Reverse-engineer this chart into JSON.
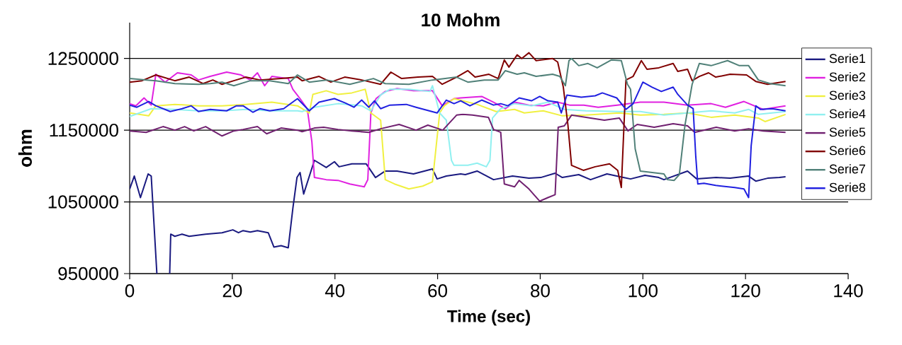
{
  "chart_data": {
    "type": "line",
    "title": "10 Mohm",
    "xlabel": "Time (sec)",
    "ylabel": "ohm",
    "xlim": [
      0,
      140
    ],
    "xticks": [
      0,
      20,
      40,
      60,
      80,
      100,
      120,
      140
    ],
    "ylim": [
      950000,
      1300000
    ],
    "yticks": [
      950000,
      1050000,
      1150000,
      1250000
    ],
    "grid": "y",
    "legend": "right",
    "series": [
      {
        "name": "Serie1",
        "color": "#1a1a80",
        "x": [
          0,
          0.9,
          2.1,
          3.6,
          4.2,
          5.3,
          6.5,
          7.8,
          8.0,
          8.8,
          10.2,
          11.6,
          14.8,
          18,
          20.1,
          21.2,
          22.1,
          23.5,
          24.9,
          27,
          28.1,
          29.5,
          30.9,
          31.8,
          32.6,
          33.2,
          33.9,
          36.0,
          38.3,
          39.9,
          40.8,
          43.3,
          46.1,
          47.9,
          49.8,
          52.1,
          55.3,
          59.0,
          59.9,
          61.7,
          64.5,
          65.4,
          67.7,
          70.9,
          74.6,
          77.8,
          80.1,
          82.9,
          84.3,
          87.5,
          89.8,
          93.0,
          96.2,
          97.6,
          100.4,
          103.1,
          104.1,
          108.7,
          110.5,
          114.3,
          117.0,
          120.6,
          122.0,
          124.3,
          126.6,
          127.8
        ],
        "values": [
          1068000,
          1086000,
          1056000,
          1089000,
          1086000,
          950000,
          null,
          950000,
          1005000,
          1002000,
          1005000,
          1002000,
          1005000,
          1007000,
          1011000,
          1007000,
          1010000,
          1008000,
          1010000,
          1007000,
          987000,
          989000,
          986000,
          1041000,
          1084000,
          1091000,
          1061000,
          1108000,
          1098000,
          1106000,
          1099000,
          1103000,
          1103000,
          1084000,
          1093000,
          1093000,
          1089000,
          1096000,
          1082000,
          1086000,
          1089000,
          1088000,
          1093000,
          1081000,
          1086000,
          1083000,
          1084000,
          1090000,
          1084000,
          1088000,
          1081000,
          1089000,
          1084000,
          1082000,
          1087000,
          1084000,
          1081000,
          1093000,
          1082000,
          1084000,
          1083000,
          1086000,
          1079000,
          1083000,
          1084000,
          1085000
        ]
      },
      {
        "name": "Serie2",
        "color": "#e020e0",
        "x": [
          0,
          1.2,
          2.8,
          4.2,
          5.1,
          6.9,
          9.3,
          12.0,
          13.4,
          15.7,
          18.9,
          21.7,
          23.5,
          24.9,
          26.3,
          27.7,
          30.9,
          31.8,
          33.2,
          34.6,
          35.5,
          36.0,
          38.3,
          40.6,
          42.9,
          45.7,
          46.4,
          47.0,
          48.0,
          49.8,
          52.1,
          55.3,
          59.0,
          60.9,
          63.2,
          64.5,
          68.6,
          70.9,
          73.2,
          75.0,
          77.8,
          80.6,
          83.4,
          85.7,
          88.5,
          91.3,
          95.0,
          99.5,
          104.1,
          108.7,
          113.3,
          116.1,
          119.7,
          123.4,
          127.8
        ],
        "values": [
          1187000,
          1184000,
          1195000,
          1185000,
          1228000,
          1217000,
          1230000,
          1227000,
          1220000,
          1225000,
          1231000,
          1227000,
          1220000,
          1230000,
          1212000,
          1225000,
          1222000,
          1207000,
          1194000,
          1180000,
          1134000,
          1084000,
          1081000,
          1080000,
          1075000,
          1071000,
          1081000,
          1174000,
          1194000,
          1204000,
          1208000,
          1205000,
          1205000,
          1184000,
          1194000,
          1195000,
          1197000,
          1189000,
          1180000,
          1189000,
          1185000,
          1184000,
          1189000,
          1185000,
          1185000,
          1182000,
          1185000,
          1189000,
          1189000,
          1185000,
          1187000,
          1182000,
          1190000,
          1179000,
          1184000
        ]
      },
      {
        "name": "Serie3",
        "color": "#f0f040",
        "x": [
          0,
          3.7,
          5.1,
          8.8,
          13.4,
          18.0,
          22.6,
          27.7,
          32.7,
          35.0,
          35.7,
          38.3,
          40.6,
          43.3,
          45.9,
          47.0,
          48.9,
          49.8,
          51.6,
          54.4,
          57.1,
          59.0,
          60.4,
          61.3,
          63.2,
          67.7,
          71.4,
          75.0,
          76.9,
          80.6,
          84.3,
          88.9,
          95.4,
          99.5,
          104.1,
          108.7,
          113.3,
          117.9,
          122.5,
          123.8,
          127.8
        ],
        "values": [
          1174000,
          1170000,
          1184000,
          1186000,
          1184000,
          1184000,
          1186000,
          1189000,
          1184000,
          1174000,
          1200000,
          1205000,
          1200000,
          1202000,
          1207000,
          1174000,
          1164000,
          1081000,
          1075000,
          1068000,
          1072000,
          1078000,
          1174000,
          1184000,
          1194000,
          1186000,
          1176000,
          1179000,
          1174000,
          1177000,
          1170000,
          1171000,
          1174000,
          1171000,
          1172000,
          1174000,
          1168000,
          1171000,
          1167000,
          1162000,
          1172000
        ]
      },
      {
        "name": "Serie4",
        "color": "#90f0f0",
        "x": [
          0,
          4.2,
          8.8,
          13.4,
          18,
          22.6,
          27.3,
          32.7,
          33.6,
          36,
          40.6,
          45.2,
          47,
          48.9,
          50.7,
          54.4,
          58.5,
          59,
          60.4,
          61.7,
          62.7,
          63.2,
          65.9,
          67.7,
          69.5,
          70.2,
          70.7,
          72.3,
          75,
          78.3,
          81.5,
          84.7,
          88.9,
          95.4,
          99.5,
          104.1,
          108.7,
          113.3,
          117.9,
          120.6,
          122.5,
          127.8
        ],
        "values": [
          1169000,
          1180000,
          1179000,
          1177000,
          1177000,
          1179000,
          1177000,
          1177000,
          1176000,
          1182000,
          1187000,
          1184000,
          1177000,
          1199000,
          1207000,
          1207000,
          1204000,
          1212000,
          1174000,
          1164000,
          1108000,
          1101000,
          1101000,
          1104000,
          1099000,
          1108000,
          1167000,
          1180000,
          1187000,
          1184000,
          1189000,
          1179000,
          1177000,
          1176000,
          1176000,
          1171000,
          1174000,
          1177000,
          1174000,
          1179000,
          1172000,
          1176000
        ]
      },
      {
        "name": "Serie5",
        "color": "#702070",
        "x": [
          0,
          3.2,
          6.5,
          8.8,
          10.7,
          12.5,
          14.8,
          18,
          20.3,
          22.1,
          24.9,
          26.7,
          29.5,
          32.7,
          33.6,
          36,
          37.8,
          40.6,
          43.3,
          46.6,
          48.9,
          52.5,
          55.8,
          58.1,
          61,
          63.7,
          64.9,
          66.8,
          69.9,
          70.9,
          72.3,
          73,
          75,
          75.9,
          77.8,
          79.9,
          81.5,
          82.9,
          83.5,
          84.7,
          86.1,
          89.8,
          92.5,
          95.4,
          97.1,
          98.9,
          102.2,
          105.9,
          108.7,
          110.1,
          114.3,
          117.9,
          120.6,
          123.4,
          127.8
        ],
        "values": [
          1149000,
          1147000,
          1155000,
          1150000,
          1155000,
          1149000,
          1155000,
          1142000,
          1149000,
          1151000,
          1155000,
          1145000,
          1153000,
          1150000,
          1148000,
          1153000,
          1154000,
          1151000,
          1149000,
          1147000,
          1152000,
          1158000,
          1150000,
          1157000,
          1150000,
          1171000,
          1172000,
          1171000,
          1168000,
          1151000,
          1147000,
          1075000,
          1071000,
          1080000,
          1068000,
          1051000,
          1056000,
          1060000,
          1154000,
          1156000,
          1171000,
          1167000,
          1164000,
          1167000,
          1149000,
          1158000,
          1154000,
          1159000,
          1156000,
          1147000,
          1154000,
          1149000,
          1152000,
          1149000,
          1147000
        ]
      },
      {
        "name": "Serie6",
        "color": "#800000",
        "x": [
          0,
          2.4,
          5.1,
          8.8,
          11.6,
          14.3,
          16.2,
          18,
          20.3,
          22.6,
          25.4,
          29.5,
          32.7,
          33.6,
          36.9,
          39.2,
          41.9,
          45.2,
          48.9,
          50.9,
          53,
          56.2,
          59,
          60.9,
          63.7,
          65.9,
          67.3,
          70,
          71.8,
          73,
          73.9,
          75.5,
          76.4,
          77.8,
          79.2,
          82.4,
          83.4,
          84.5,
          85.4,
          86.1,
          88.4,
          90.7,
          93.5,
          95.1,
          95.8,
          96.7,
          98.1,
          99.7,
          100.8,
          103.1,
          105.9,
          106.8,
          108.7,
          109.6,
          111,
          112.8,
          114.2,
          117,
          120.2,
          122,
          124.3,
          127.8
        ],
        "values": [
          1217000,
          1219000,
          1227000,
          1219000,
          1224000,
          1215000,
          1220000,
          1214000,
          1219000,
          1224000,
          1220000,
          1222000,
          1224000,
          1219000,
          1225000,
          1217000,
          1224000,
          1220000,
          1214000,
          1231000,
          1222000,
          1224000,
          1225000,
          1214000,
          1224000,
          1233000,
          1224000,
          1228000,
          1222000,
          1248000,
          1238000,
          1255000,
          1250000,
          1258000,
          1247000,
          1250000,
          1245000,
          1210000,
          1157000,
          1101000,
          1094000,
          1099000,
          1103000,
          1094000,
          1070000,
          1220000,
          1225000,
          1247000,
          1235000,
          1237000,
          1243000,
          1232000,
          1235000,
          1219000,
          1225000,
          1230000,
          1224000,
          1228000,
          1227000,
          1218000,
          1214000,
          1218000
        ]
      },
      {
        "name": "Serie7",
        "color": "#508078",
        "x": [
          0,
          3.3,
          5.1,
          8.8,
          13.4,
          15.7,
          18,
          20.3,
          23.5,
          27.3,
          30.9,
          32.7,
          35,
          38.3,
          42.9,
          47.5,
          49.8,
          54.4,
          59,
          63.7,
          65.9,
          69.1,
          71.8,
          73.2,
          75.5,
          76.9,
          79.2,
          82.4,
          83.8,
          84.9,
          85.6,
          86.1,
          87.5,
          89.3,
          91.1,
          93.9,
          95.8,
          97,
          97.6,
          98.5,
          99.5,
          101.8,
          104.1,
          104.8,
          106.1,
          107.1,
          108.2,
          109.6,
          111,
          113.3,
          116.5,
          118.8,
          120.6,
          122.5,
          124.8,
          127.8
        ],
        "values": [
          1222000,
          1220000,
          1219000,
          1215000,
          1214000,
          1215000,
          1217000,
          1212000,
          1219000,
          1219000,
          1215000,
          1227000,
          1217000,
          1220000,
          1214000,
          1222000,
          1215000,
          1214000,
          1220000,
          1224000,
          1217000,
          1220000,
          1220000,
          1233000,
          1228000,
          1230000,
          1225000,
          1228000,
          1225000,
          1212000,
          1247000,
          1250000,
          1240000,
          1243000,
          1237000,
          1248000,
          1247000,
          1214000,
          1207000,
          1124000,
          1093000,
          1091000,
          1089000,
          1081000,
          1080000,
          1088000,
          1157000,
          1214000,
          1243000,
          1240000,
          1247000,
          1240000,
          1240000,
          1220000,
          1215000,
          1212000
        ]
      },
      {
        "name": "Serie8",
        "color": "#2020e0",
        "x": [
          0,
          1.4,
          3.7,
          5.1,
          7.9,
          10.2,
          12,
          13.4,
          15.7,
          18.9,
          20.8,
          22.1,
          24,
          25.4,
          27.3,
          30,
          32.7,
          35,
          36.9,
          39.9,
          42,
          43.7,
          45.2,
          46.6,
          47.7,
          48.9,
          50.7,
          53.9,
          55.8,
          59.9,
          61.7,
          63.2,
          64.5,
          66.3,
          68.6,
          70.9,
          72.3,
          73.7,
          75.9,
          78.3,
          79.9,
          81.5,
          83.4,
          84.1,
          85.2,
          88,
          90.7,
          92.1,
          94.9,
          96.7,
          98.1,
          100,
          101.8,
          103.6,
          105.9,
          106.8,
          108.7,
          109.8,
          110.3,
          110.7,
          111.9,
          114.2,
          117.9,
          119.7,
          120.6,
          121.1,
          122,
          122.9,
          125.2,
          127.8
        ],
        "values": [
          1185000,
          1182000,
          1190000,
          1184000,
          1176000,
          1180000,
          1184000,
          1176000,
          1179000,
          1177000,
          1184000,
          1184000,
          1175000,
          1180000,
          1177000,
          1180000,
          1194000,
          1177000,
          1189000,
          1194000,
          1188000,
          1182000,
          1192000,
          1182000,
          1191000,
          1180000,
          1185000,
          1186000,
          1182000,
          1174000,
          1192000,
          1187000,
          1191000,
          1184000,
          1192000,
          1185000,
          1187000,
          1184000,
          1195000,
          1191000,
          1197000,
          1191000,
          1189000,
          1174000,
          1199000,
          1196000,
          1198000,
          1202000,
          1195000,
          1179000,
          1187000,
          1217000,
          1210000,
          1204000,
          1210000,
          1200000,
          1185000,
          1180000,
          1114000,
          1075000,
          1076000,
          1073000,
          1070000,
          1068000,
          1056000,
          1128000,
          1184000,
          1179000,
          1180000,
          1177000
        ]
      }
    ]
  }
}
